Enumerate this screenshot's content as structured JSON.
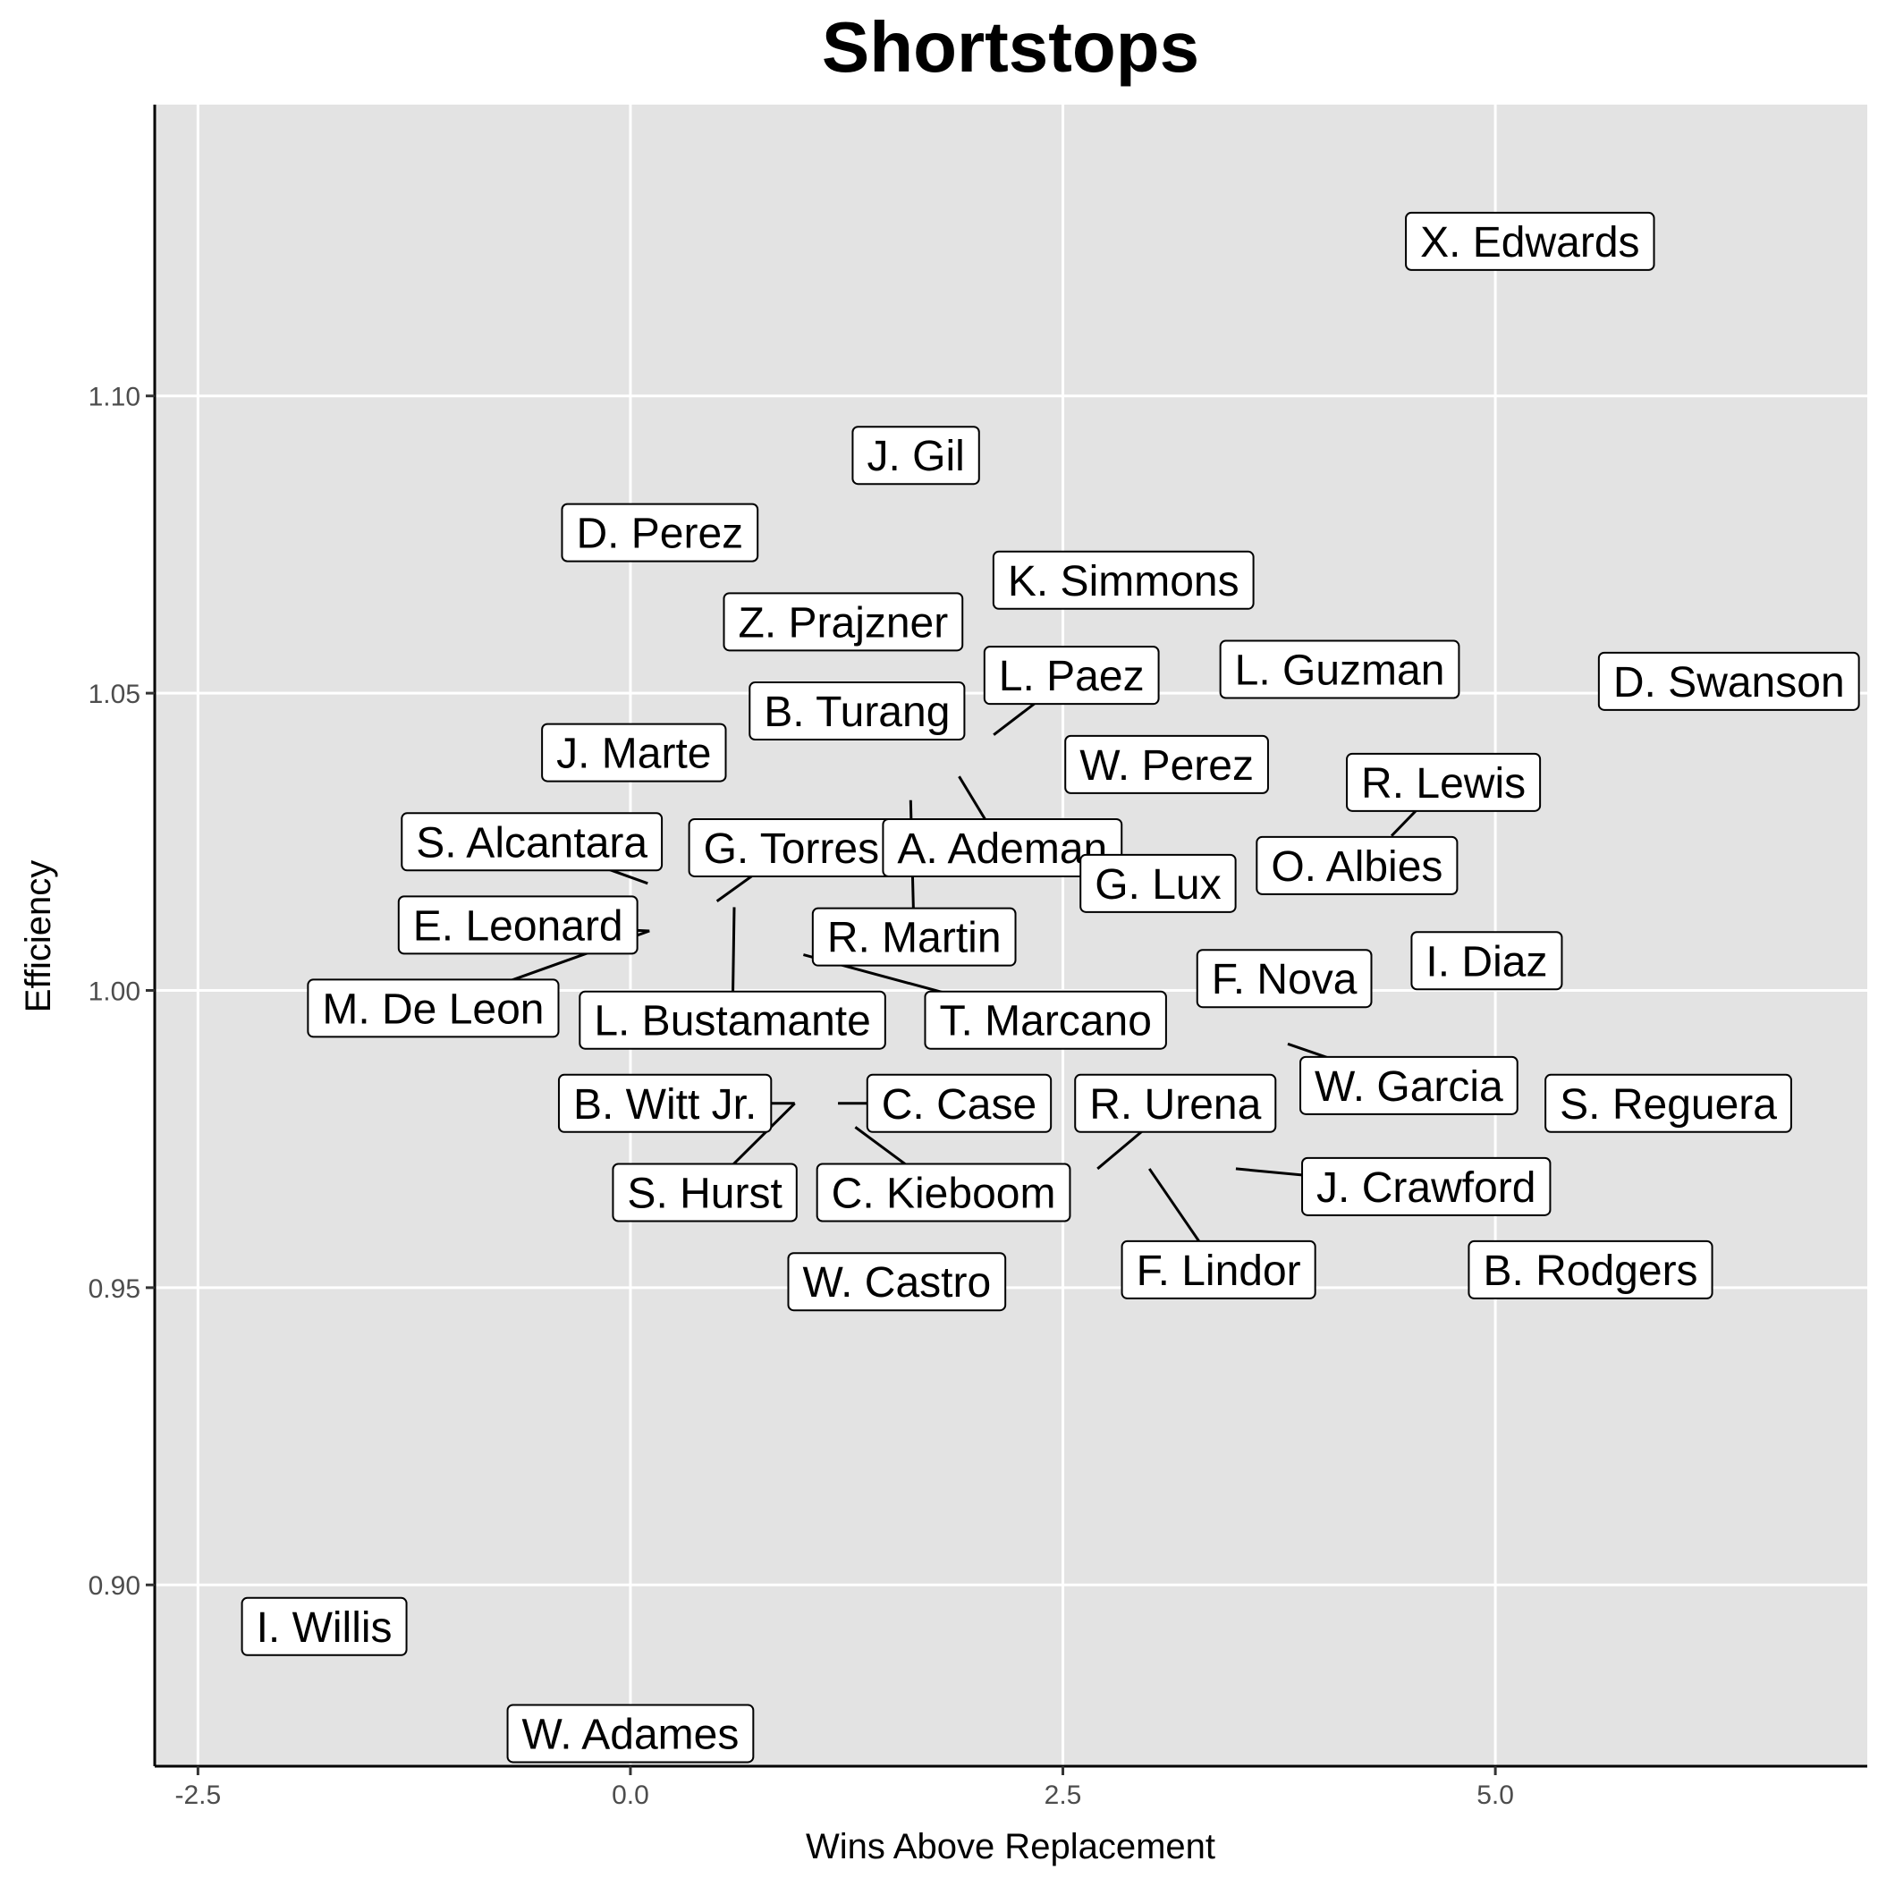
{
  "chart_data": {
    "type": "scatter",
    "title": "Shortstops",
    "xlabel": "Wins Above Replacement",
    "ylabel": "Efficiency",
    "xlim": [
      -2.75,
      7.15
    ],
    "ylim": [
      0.8695,
      1.149
    ],
    "x_ticks": [
      -2.5,
      0.0,
      2.5,
      5.0
    ],
    "x_tick_labels": [
      "-2.5",
      "0.0",
      "2.5",
      "5.0"
    ],
    "y_ticks": [
      0.9,
      0.95,
      1.0,
      1.05,
      1.1
    ],
    "y_tick_labels": [
      "0.90",
      "0.95",
      "1.00",
      "1.05",
      "1.10"
    ],
    "grid": true,
    "colors": {
      "panel": "#e3e3e3",
      "grid": "#ffffff",
      "label_fill": "#ffffff",
      "label_border": "#000000",
      "axis": "#000000"
    },
    "points": [
      {
        "name": "X. Edwards",
        "x": 5.2,
        "y": 1.126,
        "label_x": 5.2,
        "label_y": 1.126
      },
      {
        "name": "J. Gil",
        "x": 1.65,
        "y": 1.09,
        "label_x": 1.65,
        "label_y": 1.09
      },
      {
        "name": "D. Perez",
        "x": 0.17,
        "y": 1.077,
        "label_x": 0.17,
        "label_y": 1.077
      },
      {
        "name": "K. Simmons",
        "x": 2.85,
        "y": 1.069,
        "label_x": 2.85,
        "label_y": 1.069
      },
      {
        "name": "Z. Prajzner",
        "x": 1.23,
        "y": 1.062,
        "label_x": 1.23,
        "label_y": 1.062
      },
      {
        "name": "L. Guzman",
        "x": 4.1,
        "y": 1.054,
        "label_x": 4.1,
        "label_y": 1.054
      },
      {
        "name": "L. Paez",
        "x": 2.1,
        "y": 1.043,
        "label_x": 2.55,
        "label_y": 1.053
      },
      {
        "name": "D. Swanson",
        "x": 6.35,
        "y": 1.052,
        "label_x": 6.35,
        "label_y": 1.052
      },
      {
        "name": "B. Turang",
        "x": 1.31,
        "y": 1.047,
        "label_x": 1.31,
        "label_y": 1.047
      },
      {
        "name": "J. Marte",
        "x": 0.02,
        "y": 1.04,
        "label_x": 0.02,
        "label_y": 1.04
      },
      {
        "name": "W. Perez",
        "x": 3.1,
        "y": 1.038,
        "label_x": 3.1,
        "label_y": 1.038
      },
      {
        "name": "R. Lewis",
        "x": 4.4,
        "y": 1.026,
        "label_x": 4.7,
        "label_y": 1.035
      },
      {
        "name": "S. Alcantara",
        "x": 0.1,
        "y": 1.018,
        "label_x": -0.57,
        "label_y": 1.025
      },
      {
        "name": "G. Torres",
        "x": 0.5,
        "y": 1.015,
        "label_x": 0.93,
        "label_y": 1.024
      },
      {
        "name": "A. Ademan",
        "x": 1.9,
        "y": 1.036,
        "label_x": 2.15,
        "label_y": 1.024
      },
      {
        "name": "G. Lux",
        "x": 2.5,
        "y": 1.023,
        "label_x": 3.05,
        "label_y": 1.018
      },
      {
        "name": "O. Albies",
        "x": 4.25,
        "y": 1.021,
        "label_x": 4.2,
        "label_y": 1.021
      },
      {
        "name": "E. Leonard",
        "x": 0.11,
        "y": 1.01,
        "label_x": -0.65,
        "label_y": 1.011
      },
      {
        "name": "R. Martin",
        "x": 1.62,
        "y": 1.032,
        "label_x": 1.64,
        "label_y": 1.009
      },
      {
        "name": "I. Diaz",
        "x": 4.95,
        "y": 1.005,
        "label_x": 4.95,
        "label_y": 1.005
      },
      {
        "name": "F. Nova",
        "x": 3.78,
        "y": 1.002,
        "label_x": 3.78,
        "label_y": 1.002
      },
      {
        "name": "M. De Leon",
        "x": 0.11,
        "y": 1.01,
        "label_x": -1.14,
        "label_y": 0.997
      },
      {
        "name": "L. Bustamante",
        "x": 0.6,
        "y": 1.014,
        "label_x": 0.59,
        "label_y": 0.995
      },
      {
        "name": "T. Marcano",
        "x": 1.0,
        "y": 1.006,
        "label_x": 2.4,
        "label_y": 0.995
      },
      {
        "name": "W. Garcia",
        "x": 3.8,
        "y": 0.991,
        "label_x": 4.5,
        "label_y": 0.984
      },
      {
        "name": "B. Witt Jr.",
        "x": 0.95,
        "y": 0.981,
        "label_x": 0.2,
        "label_y": 0.981
      },
      {
        "name": "C. Case",
        "x": 1.2,
        "y": 0.981,
        "label_x": 1.9,
        "label_y": 0.981
      },
      {
        "name": "R. Urena",
        "x": 2.7,
        "y": 0.97,
        "label_x": 3.15,
        "label_y": 0.981
      },
      {
        "name": "S. Reguera",
        "x": 6.0,
        "y": 0.981,
        "label_x": 6.0,
        "label_y": 0.981
      },
      {
        "name": "S. Hurst",
        "x": 0.95,
        "y": 0.981,
        "label_x": 0.43,
        "label_y": 0.966
      },
      {
        "name": "C. Kieboom",
        "x": 1.3,
        "y": 0.977,
        "label_x": 1.81,
        "label_y": 0.966
      },
      {
        "name": "J. Crawford",
        "x": 3.5,
        "y": 0.97,
        "label_x": 4.6,
        "label_y": 0.967
      },
      {
        "name": "F. Lindor",
        "x": 3.0,
        "y": 0.97,
        "label_x": 3.4,
        "label_y": 0.953
      },
      {
        "name": "B. Rodgers",
        "x": 5.55,
        "y": 0.953,
        "label_x": 5.55,
        "label_y": 0.953
      },
      {
        "name": "W. Castro",
        "x": 1.54,
        "y": 0.951,
        "label_x": 1.54,
        "label_y": 0.951
      },
      {
        "name": "I. Willis",
        "x": -1.77,
        "y": 0.893,
        "label_x": -1.77,
        "label_y": 0.893
      },
      {
        "name": "W. Adames",
        "x": 0.0,
        "y": 0.875,
        "label_x": 0.0,
        "label_y": 0.875
      }
    ]
  }
}
